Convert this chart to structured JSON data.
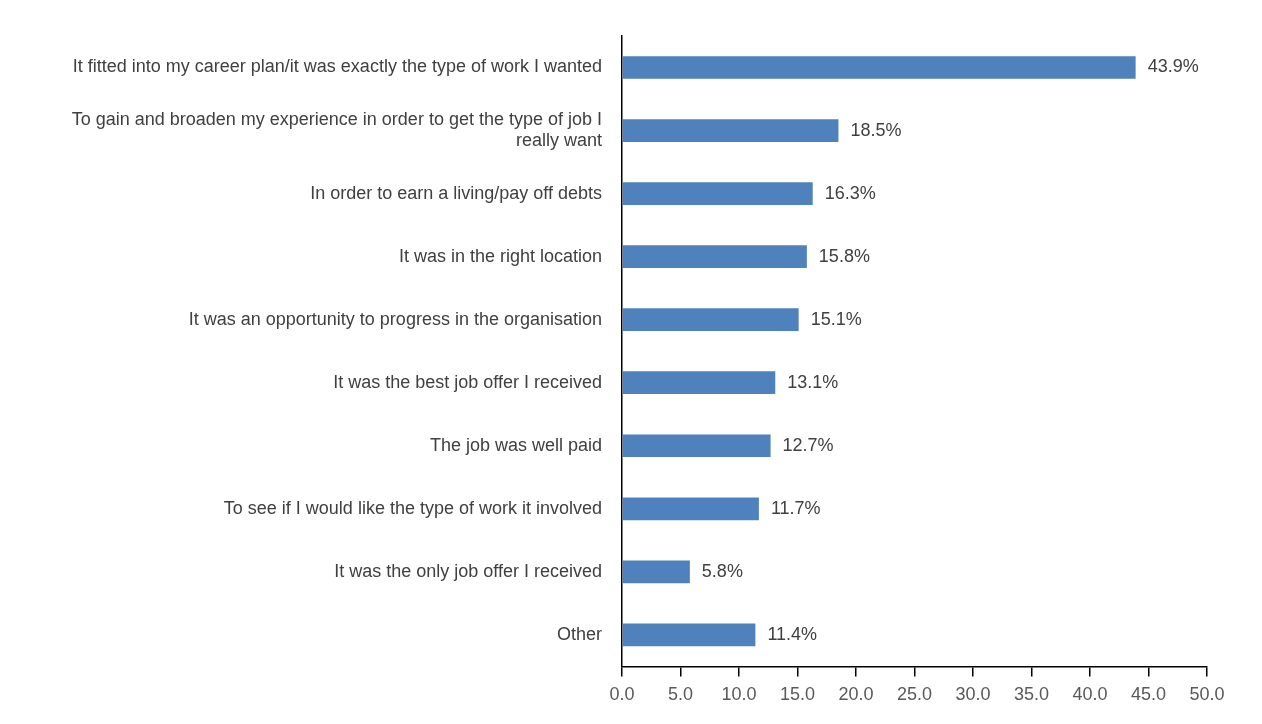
{
  "chart_data": {
    "type": "bar",
    "orientation": "horizontal",
    "categories": [
      "It fitted into my career plan/it was exactly the type of work I wanted",
      "To gain and broaden my experience in order to get the type of job I really want",
      "In order to earn a living/pay off debts",
      "It was in the right location",
      "It was an opportunity to progress in the organisation",
      "It was the best job offer I received",
      "The job was well paid",
      "To see if I would like the type of work it involved",
      "It was the only job offer I received",
      "Other"
    ],
    "values": [
      43.9,
      18.5,
      16.3,
      15.8,
      15.1,
      13.1,
      12.7,
      11.7,
      5.8,
      11.4
    ],
    "value_labels": [
      "43.9%",
      "18.5%",
      "16.3%",
      "15.8%",
      "15.1%",
      "13.1%",
      "12.7%",
      "11.7%",
      "5.8%",
      "11.4%"
    ],
    "color": "#4f81bd",
    "xlim": [
      0,
      50
    ],
    "xticks": [
      {
        "value": 0,
        "label": "0.0"
      },
      {
        "value": 5,
        "label": "5.0"
      },
      {
        "value": 10,
        "label": "10.0"
      },
      {
        "value": 15,
        "label": "15.0"
      },
      {
        "value": 20,
        "label": "20.0"
      },
      {
        "value": 25,
        "label": "25.0"
      },
      {
        "value": 30,
        "label": "30.0"
      },
      {
        "value": 35,
        "label": "35.0"
      },
      {
        "value": 40,
        "label": "40.0"
      },
      {
        "value": 45,
        "label": "45.0"
      },
      {
        "value": 50,
        "label": "50.0"
      }
    ],
    "grid": false,
    "legend": false
  }
}
